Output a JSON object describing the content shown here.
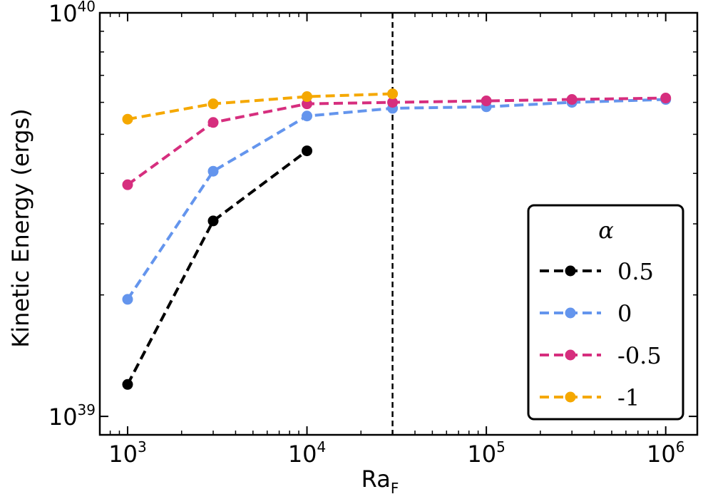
{
  "chart_data": {
    "type": "line",
    "xscale": "log",
    "yscale": "log",
    "xlim": [
      700,
      1500000
    ],
    "ylim": [
      9e+38,
      1e+40
    ],
    "xlabel": "Ra",
    "xlabel_sub": "F",
    "ylabel": "Kinetic Energy (ergs)",
    "x_ticks": [
      {
        "value": 1000,
        "base": "10",
        "exp": "3"
      },
      {
        "value": 10000,
        "base": "10",
        "exp": "4"
      },
      {
        "value": 100000,
        "base": "10",
        "exp": "5"
      },
      {
        "value": 1000000,
        "base": "10",
        "exp": "6"
      }
    ],
    "y_ticks": [
      {
        "value": 1e+39,
        "base": "10",
        "exp": "39"
      },
      {
        "value": 1e+40,
        "base": "10",
        "exp": "40"
      }
    ],
    "vertical_line": {
      "x": 30000,
      "style": "dashed",
      "color": "#000000"
    },
    "legend": {
      "title": "α",
      "position": "lower-right"
    },
    "series": [
      {
        "name": "0.5",
        "color": "#000000",
        "x": [
          1000,
          3000,
          10000
        ],
        "y": [
          1.2e+39,
          3.05e+39,
          4.55e+39
        ]
      },
      {
        "name": "0",
        "color": "#6495ED",
        "x": [
          1000,
          3000,
          10000,
          30000,
          100000,
          300000,
          1000000
        ],
        "y": [
          1.95e+39,
          4.05e+39,
          5.55e+39,
          5.8e+39,
          5.85e+39,
          6e+39,
          6.1e+39
        ]
      },
      {
        "name": "-0.5",
        "color": "#D62E7E",
        "x": [
          1000,
          3000,
          10000,
          30000,
          100000,
          300000,
          1000000
        ],
        "y": [
          3.75e+39,
          5.35e+39,
          5.95e+39,
          6e+39,
          6.05e+39,
          6.1e+39,
          6.15e+39
        ]
      },
      {
        "name": "-1",
        "color": "#F5A800",
        "x": [
          1000,
          3000,
          10000,
          30000
        ],
        "y": [
          5.45e+39,
          5.95e+39,
          6.2e+39,
          6.3e+39
        ]
      }
    ]
  }
}
